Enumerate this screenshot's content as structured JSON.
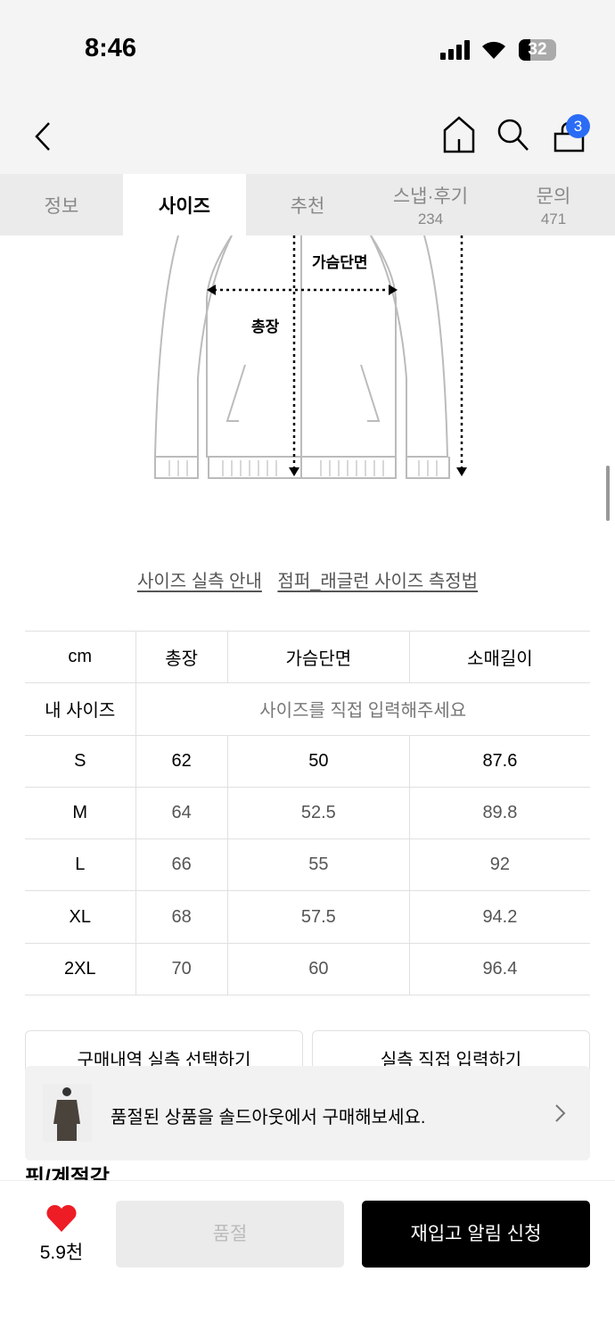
{
  "status": {
    "time": "8:46",
    "battery": "32"
  },
  "header": {
    "cart_count": "3"
  },
  "tabs": [
    {
      "label": "정보"
    },
    {
      "label": "사이즈",
      "active": true
    },
    {
      "label": "추천"
    },
    {
      "label": "스냅·후기",
      "count": "234"
    },
    {
      "label": "문의",
      "count": "471"
    }
  ],
  "diagram": {
    "chest_label": "가슴단면",
    "length_label": "총장"
  },
  "links": [
    "사이즈 실측 안내",
    "점퍼_래글런 사이즈 측정법"
  ],
  "size_table": {
    "headers": [
      "cm",
      "총장",
      "가슴단면",
      "소매길이"
    ],
    "my_size": {
      "label": "내 사이즈",
      "placeholder": "사이즈를 직접 입력해주세요"
    },
    "rows": [
      [
        "S",
        "62",
        "50",
        "87.6"
      ],
      [
        "M",
        "64",
        "52.5",
        "89.8"
      ],
      [
        "L",
        "66",
        "55",
        "92"
      ],
      [
        "XL",
        "68",
        "57.5",
        "94.2"
      ],
      [
        "2XL",
        "70",
        "60",
        "96.4"
      ]
    ]
  },
  "buttons": {
    "select_history": "구매내역 실측 선택하기",
    "enter_direct": "실측 직접 입력하기"
  },
  "banner": {
    "text": "품절된 상품을 솔드아웃에서 구매해보세요."
  },
  "section_heading": "핏/계절감",
  "bottom": {
    "likes": "5.9천",
    "soldout": "품절",
    "restock": "재입고 알림 신청"
  },
  "colors": {
    "badge": "#2b6cf6",
    "heart": "#ee1c25"
  }
}
